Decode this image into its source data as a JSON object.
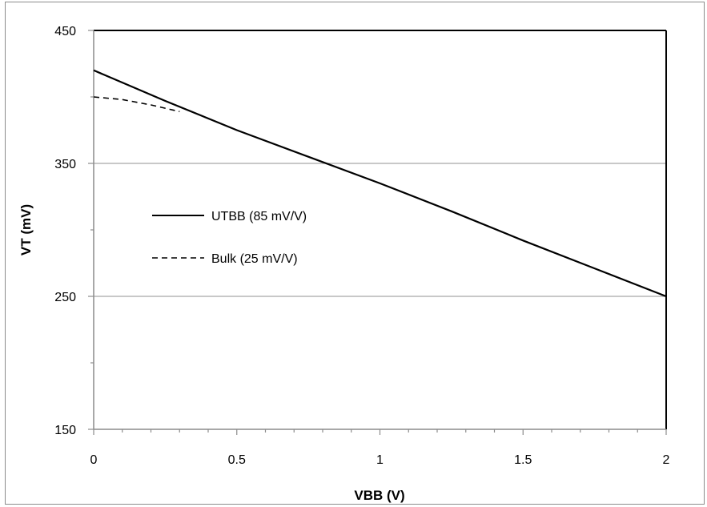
{
  "chart_data": {
    "type": "line",
    "xlabel": "VBB (V)",
    "ylabel": "VT (mV)",
    "xlim": [
      0,
      2
    ],
    "ylim": [
      150,
      450
    ],
    "x_ticks": [
      0,
      0.5,
      1,
      1.5,
      2
    ],
    "x_tick_labels": [
      "0",
      "0.5",
      "1",
      "1.5",
      "2"
    ],
    "y_ticks": [
      150,
      250,
      350,
      450
    ],
    "y_tick_labels": [
      "150",
      "250",
      "350",
      "450"
    ],
    "grid": "horizontal major lines",
    "legend_position": "left-middle inside plot",
    "series": [
      {
        "name": "UTBB (85 mV/V)",
        "style": "solid",
        "color": "#000000",
        "x": [
          0,
          0.25,
          0.5,
          0.75,
          1.0,
          1.25,
          1.5,
          1.75,
          2.0
        ],
        "y": [
          420,
          397,
          375,
          355,
          335,
          314,
          292,
          271,
          250
        ]
      },
      {
        "name": "Bulk (25 mV/V)",
        "style": "dashed",
        "color": "#000000",
        "x": [
          0,
          0.1,
          0.2,
          0.3
        ],
        "y": [
          400,
          398,
          394,
          389
        ]
      }
    ]
  }
}
